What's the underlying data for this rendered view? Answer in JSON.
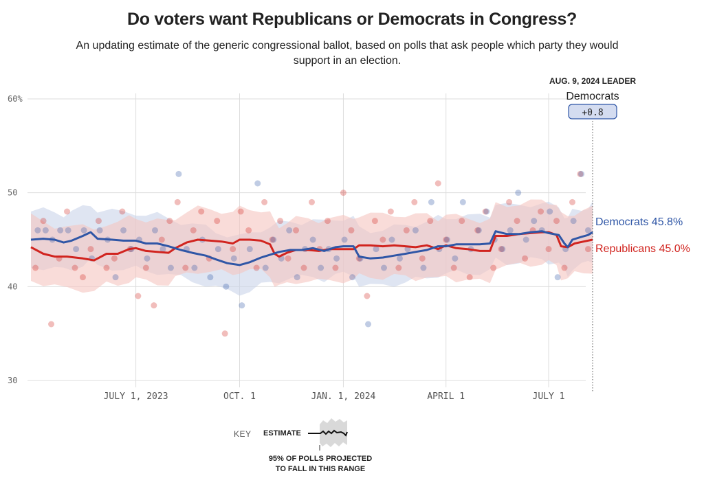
{
  "header": {
    "title": "Do voters want Republicans or Democrats in Congress?",
    "subtitle": "An updating estimate of the generic congressional ballot, based on polls that ask people which party they would support in an election."
  },
  "leader": {
    "date_label": "AUG. 9, 2024 LEADER",
    "party": "Democrats",
    "margin": "+0.8"
  },
  "key": {
    "label": "KEY",
    "estimate": "ESTIMATE",
    "range_line1": "95% OF POLLS PROJECTED",
    "range_line2": "TO FALL IN THIS RANGE"
  },
  "colors": {
    "democrats": "#2f56a6",
    "republicans": "#d1241f",
    "dem_band": "#c9d3ea",
    "rep_band": "#f5c4c0",
    "grid": "#dddddd"
  },
  "chart_data": {
    "type": "line",
    "title": "Do voters want Republicans or Democrats in Congress?",
    "xlabel": "",
    "ylabel": "",
    "ylim": [
      30,
      60
    ],
    "yticks": [
      30,
      40,
      50,
      60
    ],
    "ytick_labels": [
      "30",
      "40",
      "50",
      "60%"
    ],
    "xrange": [
      "2023-03-30",
      "2024-08-09"
    ],
    "xticks": [
      "2023-07-01",
      "2023-10-01",
      "2024-01-01",
      "2024-04-01",
      "2024-07-01"
    ],
    "xtick_labels": [
      "JULY 1, 2023",
      "OCT. 1",
      "JAN. 1, 2024",
      "APRIL 1",
      "JULY 1"
    ],
    "grid": true,
    "legend": "right-end labels",
    "series": [
      {
        "name": "Democrats",
        "end_label": "Democrats 45.8%",
        "final_value": 45.8,
        "band_halfwidth": 3.0,
        "points": [
          [
            "2023-03-30",
            45.0
          ],
          [
            "2023-04-10",
            45.1
          ],
          [
            "2023-04-20",
            45.0
          ],
          [
            "2023-04-28",
            44.7
          ],
          [
            "2023-05-05",
            44.9
          ],
          [
            "2023-05-15",
            45.4
          ],
          [
            "2023-05-22",
            45.8
          ],
          [
            "2023-05-28",
            45.1
          ],
          [
            "2023-06-10",
            45.0
          ],
          [
            "2023-06-20",
            44.9
          ],
          [
            "2023-07-01",
            44.9
          ],
          [
            "2023-07-10",
            44.6
          ],
          [
            "2023-07-20",
            44.6
          ],
          [
            "2023-07-30",
            44.3
          ],
          [
            "2023-08-10",
            43.9
          ],
          [
            "2023-08-20",
            43.6
          ],
          [
            "2023-09-01",
            43.3
          ],
          [
            "2023-09-10",
            42.9
          ],
          [
            "2023-09-20",
            42.5
          ],
          [
            "2023-10-01",
            42.3
          ],
          [
            "2023-10-10",
            42.6
          ],
          [
            "2023-10-20",
            43.1
          ],
          [
            "2023-10-28",
            43.4
          ],
          [
            "2023-11-05",
            43.7
          ],
          [
            "2023-11-15",
            43.9
          ],
          [
            "2023-11-25",
            43.9
          ],
          [
            "2023-12-05",
            44.1
          ],
          [
            "2023-12-15",
            43.8
          ],
          [
            "2023-12-25",
            44.2
          ],
          [
            "2024-01-01",
            44.3
          ],
          [
            "2024-01-10",
            44.3
          ],
          [
            "2024-01-15",
            43.2
          ],
          [
            "2024-01-25",
            43.0
          ],
          [
            "2024-02-05",
            43.1
          ],
          [
            "2024-02-15",
            43.3
          ],
          [
            "2024-02-25",
            43.5
          ],
          [
            "2024-03-05",
            43.7
          ],
          [
            "2024-03-15",
            43.9
          ],
          [
            "2024-03-25",
            44.3
          ],
          [
            "2024-04-01",
            44.3
          ],
          [
            "2024-04-10",
            44.5
          ],
          [
            "2024-04-20",
            44.5
          ],
          [
            "2024-05-01",
            44.5
          ],
          [
            "2024-05-10",
            44.6
          ],
          [
            "2024-05-15",
            45.9
          ],
          [
            "2024-05-25",
            45.6
          ],
          [
            "2024-06-05",
            45.6
          ],
          [
            "2024-06-15",
            45.8
          ],
          [
            "2024-06-25",
            45.9
          ],
          [
            "2024-07-01",
            45.7
          ],
          [
            "2024-07-10",
            45.5
          ],
          [
            "2024-07-15",
            44.6
          ],
          [
            "2024-07-18",
            44.2
          ],
          [
            "2024-07-22",
            45.0
          ],
          [
            "2024-07-30",
            45.3
          ],
          [
            "2024-08-05",
            45.5
          ],
          [
            "2024-08-09",
            45.8
          ]
        ]
      },
      {
        "name": "Republicans",
        "end_label": "Republicans 45.0%",
        "final_value": 45.0,
        "band_halfwidth": 3.3,
        "points": [
          [
            "2023-03-30",
            44.2
          ],
          [
            "2023-04-10",
            43.5
          ],
          [
            "2023-04-20",
            43.2
          ],
          [
            "2023-05-01",
            43.2
          ],
          [
            "2023-05-15",
            43.0
          ],
          [
            "2023-05-25",
            42.8
          ],
          [
            "2023-06-05",
            43.5
          ],
          [
            "2023-06-15",
            43.5
          ],
          [
            "2023-06-25",
            44.0
          ],
          [
            "2023-07-01",
            44.1
          ],
          [
            "2023-07-10",
            43.8
          ],
          [
            "2023-07-20",
            43.7
          ],
          [
            "2023-07-30",
            43.6
          ],
          [
            "2023-08-05",
            44.1
          ],
          [
            "2023-08-15",
            44.7
          ],
          [
            "2023-08-25",
            45.0
          ],
          [
            "2023-09-05",
            44.9
          ],
          [
            "2023-09-15",
            44.8
          ],
          [
            "2023-09-25",
            44.6
          ],
          [
            "2023-10-01",
            45.0
          ],
          [
            "2023-10-10",
            45.0
          ],
          [
            "2023-10-20",
            44.9
          ],
          [
            "2023-10-28",
            44.5
          ],
          [
            "2023-11-01",
            43.5
          ],
          [
            "2023-11-05",
            43.2
          ],
          [
            "2023-11-12",
            43.6
          ],
          [
            "2023-11-20",
            43.9
          ],
          [
            "2023-12-01",
            43.9
          ],
          [
            "2023-12-10",
            43.8
          ],
          [
            "2023-12-20",
            44.0
          ],
          [
            "2024-01-01",
            44.0
          ],
          [
            "2024-01-10",
            44.0
          ],
          [
            "2024-01-15",
            44.4
          ],
          [
            "2024-01-25",
            44.4
          ],
          [
            "2024-02-05",
            44.3
          ],
          [
            "2024-02-15",
            44.4
          ],
          [
            "2024-02-25",
            44.3
          ],
          [
            "2024-03-05",
            44.2
          ],
          [
            "2024-03-15",
            44.4
          ],
          [
            "2024-03-25",
            44.0
          ],
          [
            "2024-04-01",
            44.4
          ],
          [
            "2024-04-10",
            44.1
          ],
          [
            "2024-04-20",
            44.0
          ],
          [
            "2024-05-01",
            43.8
          ],
          [
            "2024-05-10",
            43.8
          ],
          [
            "2024-05-15",
            45.4
          ],
          [
            "2024-05-25",
            45.4
          ],
          [
            "2024-06-05",
            45.6
          ],
          [
            "2024-06-15",
            45.7
          ],
          [
            "2024-06-25",
            45.8
          ],
          [
            "2024-07-01",
            45.8
          ],
          [
            "2024-07-08",
            45.5
          ],
          [
            "2024-07-12",
            44.3
          ],
          [
            "2024-07-18",
            44.2
          ],
          [
            "2024-07-24",
            44.6
          ],
          [
            "2024-08-01",
            44.8
          ],
          [
            "2024-08-09",
            45.0
          ]
        ]
      }
    ],
    "polls": {
      "democrats": [
        [
          "2023-04-05",
          46
        ],
        [
          "2023-04-12",
          46
        ],
        [
          "2023-04-18",
          45
        ],
        [
          "2023-04-25",
          46
        ],
        [
          "2023-05-02",
          46
        ],
        [
          "2023-05-09",
          44
        ],
        [
          "2023-05-16",
          46
        ],
        [
          "2023-05-23",
          43
        ],
        [
          "2023-05-30",
          46
        ],
        [
          "2023-06-06",
          45
        ],
        [
          "2023-06-13",
          41
        ],
        [
          "2023-06-20",
          46
        ],
        [
          "2023-06-27",
          44
        ],
        [
          "2023-07-04",
          45
        ],
        [
          "2023-07-11",
          43
        ],
        [
          "2023-07-18",
          46
        ],
        [
          "2023-07-25",
          44
        ],
        [
          "2023-08-01",
          42
        ],
        [
          "2023-08-08",
          52
        ],
        [
          "2023-08-15",
          44
        ],
        [
          "2023-08-22",
          42
        ],
        [
          "2023-08-29",
          45
        ],
        [
          "2023-09-05",
          41
        ],
        [
          "2023-09-12",
          44
        ],
        [
          "2023-09-19",
          40
        ],
        [
          "2023-09-26",
          43
        ],
        [
          "2023-10-03",
          38
        ],
        [
          "2023-10-10",
          44
        ],
        [
          "2023-10-17",
          51
        ],
        [
          "2023-10-24",
          42
        ],
        [
          "2023-10-31",
          45
        ],
        [
          "2023-11-07",
          43
        ],
        [
          "2023-11-14",
          46
        ],
        [
          "2023-11-21",
          41
        ],
        [
          "2023-11-28",
          44
        ],
        [
          "2023-12-05",
          45
        ],
        [
          "2023-12-12",
          42
        ],
        [
          "2023-12-19",
          44
        ],
        [
          "2023-12-26",
          43
        ],
        [
          "2024-01-02",
          45
        ],
        [
          "2024-01-09",
          41
        ],
        [
          "2024-01-16",
          43
        ],
        [
          "2024-01-23",
          36
        ],
        [
          "2024-01-30",
          44
        ],
        [
          "2024-02-06",
          42
        ],
        [
          "2024-02-13",
          45
        ],
        [
          "2024-02-20",
          43
        ],
        [
          "2024-02-27",
          44
        ],
        [
          "2024-03-05",
          46
        ],
        [
          "2024-03-12",
          42
        ],
        [
          "2024-03-19",
          49
        ],
        [
          "2024-03-26",
          44
        ],
        [
          "2024-04-02",
          45
        ],
        [
          "2024-04-09",
          43
        ],
        [
          "2024-04-16",
          49
        ],
        [
          "2024-04-23",
          44
        ],
        [
          "2024-04-30",
          46
        ],
        [
          "2024-05-07",
          48
        ],
        [
          "2024-05-14",
          45
        ],
        [
          "2024-05-21",
          44
        ],
        [
          "2024-05-28",
          46
        ],
        [
          "2024-06-04",
          50
        ],
        [
          "2024-06-11",
          45
        ],
        [
          "2024-06-18",
          47
        ],
        [
          "2024-06-25",
          46
        ],
        [
          "2024-07-02",
          48
        ],
        [
          "2024-07-09",
          41
        ],
        [
          "2024-07-16",
          44
        ],
        [
          "2024-07-23",
          47
        ],
        [
          "2024-07-30",
          52
        ],
        [
          "2024-08-05",
          46
        ]
      ],
      "republicans": [
        [
          "2023-04-03",
          42
        ],
        [
          "2023-04-10",
          47
        ],
        [
          "2023-04-17",
          36
        ],
        [
          "2023-04-24",
          43
        ],
        [
          "2023-05-01",
          48
        ],
        [
          "2023-05-08",
          42
        ],
        [
          "2023-05-15",
          41
        ],
        [
          "2023-05-22",
          44
        ],
        [
          "2023-05-29",
          47
        ],
        [
          "2023-06-05",
          42
        ],
        [
          "2023-06-12",
          43
        ],
        [
          "2023-06-19",
          48
        ],
        [
          "2023-06-26",
          44
        ],
        [
          "2023-07-03",
          39
        ],
        [
          "2023-07-10",
          42
        ],
        [
          "2023-07-17",
          38
        ],
        [
          "2023-07-24",
          45
        ],
        [
          "2023-07-31",
          47
        ],
        [
          "2023-08-07",
          49
        ],
        [
          "2023-08-14",
          42
        ],
        [
          "2023-08-21",
          46
        ],
        [
          "2023-08-28",
          48
        ],
        [
          "2023-09-04",
          43
        ],
        [
          "2023-09-11",
          47
        ],
        [
          "2023-09-18",
          35
        ],
        [
          "2023-09-25",
          44
        ],
        [
          "2023-10-02",
          48
        ],
        [
          "2023-10-09",
          46
        ],
        [
          "2023-10-16",
          42
        ],
        [
          "2023-10-23",
          49
        ],
        [
          "2023-10-30",
          45
        ],
        [
          "2023-11-06",
          47
        ],
        [
          "2023-11-13",
          43
        ],
        [
          "2023-11-20",
          46
        ],
        [
          "2023-11-27",
          42
        ],
        [
          "2023-12-04",
          49
        ],
        [
          "2023-12-11",
          44
        ],
        [
          "2023-12-18",
          47
        ],
        [
          "2023-12-25",
          42
        ],
        [
          "2024-01-01",
          50
        ],
        [
          "2024-01-08",
          46
        ],
        [
          "2024-01-15",
          43
        ],
        [
          "2024-01-22",
          39
        ],
        [
          "2024-01-29",
          47
        ],
        [
          "2024-02-05",
          45
        ],
        [
          "2024-02-12",
          48
        ],
        [
          "2024-02-19",
          42
        ],
        [
          "2024-02-26",
          46
        ],
        [
          "2024-03-04",
          49
        ],
        [
          "2024-03-11",
          43
        ],
        [
          "2024-03-18",
          47
        ],
        [
          "2024-03-25",
          51
        ],
        [
          "2024-04-01",
          45
        ],
        [
          "2024-04-08",
          42
        ],
        [
          "2024-04-15",
          47
        ],
        [
          "2024-04-22",
          41
        ],
        [
          "2024-04-29",
          46
        ],
        [
          "2024-05-06",
          48
        ],
        [
          "2024-05-13",
          42
        ],
        [
          "2024-05-20",
          44
        ],
        [
          "2024-05-27",
          49
        ],
        [
          "2024-06-03",
          47
        ],
        [
          "2024-06-10",
          43
        ],
        [
          "2024-06-17",
          46
        ],
        [
          "2024-06-24",
          48
        ],
        [
          "2024-07-01",
          44
        ],
        [
          "2024-07-08",
          47
        ],
        [
          "2024-07-15",
          42
        ],
        [
          "2024-07-22",
          49
        ],
        [
          "2024-07-29",
          52
        ],
        [
          "2024-08-05",
          44
        ]
      ]
    }
  }
}
